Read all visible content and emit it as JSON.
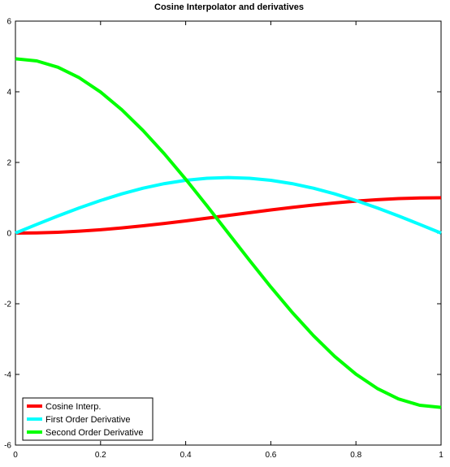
{
  "chart_data": {
    "type": "line",
    "title": "Cosine Interpolator and derivatives",
    "xlabel": "",
    "ylabel": "",
    "xlim": [
      0,
      1
    ],
    "ylim": [
      -6,
      6
    ],
    "x_ticks": [
      0,
      0.2,
      0.4,
      0.6,
      0.8,
      1
    ],
    "x_tick_labels": [
      "0",
      "0.2",
      "0.4",
      "0.6",
      "0.8",
      "1"
    ],
    "y_ticks": [
      -6,
      -4,
      -2,
      0,
      2,
      4,
      6
    ],
    "y_tick_labels": [
      "-6",
      "-4",
      "-2",
      "0",
      "2",
      "4",
      "6"
    ],
    "grid": false,
    "legend_position": "bottom-left",
    "series": [
      {
        "name": "Cosine Interp.",
        "color": "#ff0000",
        "x": [
          0,
          0.05,
          0.1,
          0.15,
          0.2,
          0.25,
          0.3,
          0.35,
          0.4,
          0.45,
          0.5,
          0.55,
          0.6,
          0.65,
          0.7,
          0.75,
          0.8,
          0.85,
          0.9,
          0.95,
          1
        ],
        "y": [
          0,
          0.006,
          0.024,
          0.054,
          0.095,
          0.146,
          0.206,
          0.273,
          0.345,
          0.422,
          0.5,
          0.578,
          0.655,
          0.727,
          0.794,
          0.854,
          0.905,
          0.946,
          0.976,
          0.994,
          1
        ]
      },
      {
        "name": "First Order Derivative",
        "color": "#00ffff",
        "x": [
          0,
          0.05,
          0.1,
          0.15,
          0.2,
          0.25,
          0.3,
          0.35,
          0.4,
          0.45,
          0.5,
          0.55,
          0.6,
          0.65,
          0.7,
          0.75,
          0.8,
          0.85,
          0.9,
          0.95,
          1
        ],
        "y": [
          0,
          0.246,
          0.485,
          0.713,
          0.923,
          1.111,
          1.271,
          1.4,
          1.494,
          1.551,
          1.571,
          1.551,
          1.494,
          1.4,
          1.271,
          1.111,
          0.923,
          0.713,
          0.485,
          0.246,
          0
        ]
      },
      {
        "name": "Second Order Derivative",
        "color": "#00ff00",
        "x": [
          0,
          0.05,
          0.1,
          0.15,
          0.2,
          0.25,
          0.3,
          0.35,
          0.4,
          0.45,
          0.5,
          0.55,
          0.6,
          0.65,
          0.7,
          0.75,
          0.8,
          0.85,
          0.9,
          0.95,
          1
        ],
        "y": [
          4.935,
          4.874,
          4.693,
          4.397,
          3.993,
          3.49,
          2.901,
          2.241,
          1.525,
          0.772,
          0,
          -0.772,
          -1.525,
          -2.241,
          -2.901,
          -3.49,
          -3.993,
          -4.397,
          -4.693,
          -4.874,
          -4.935
        ]
      }
    ]
  }
}
